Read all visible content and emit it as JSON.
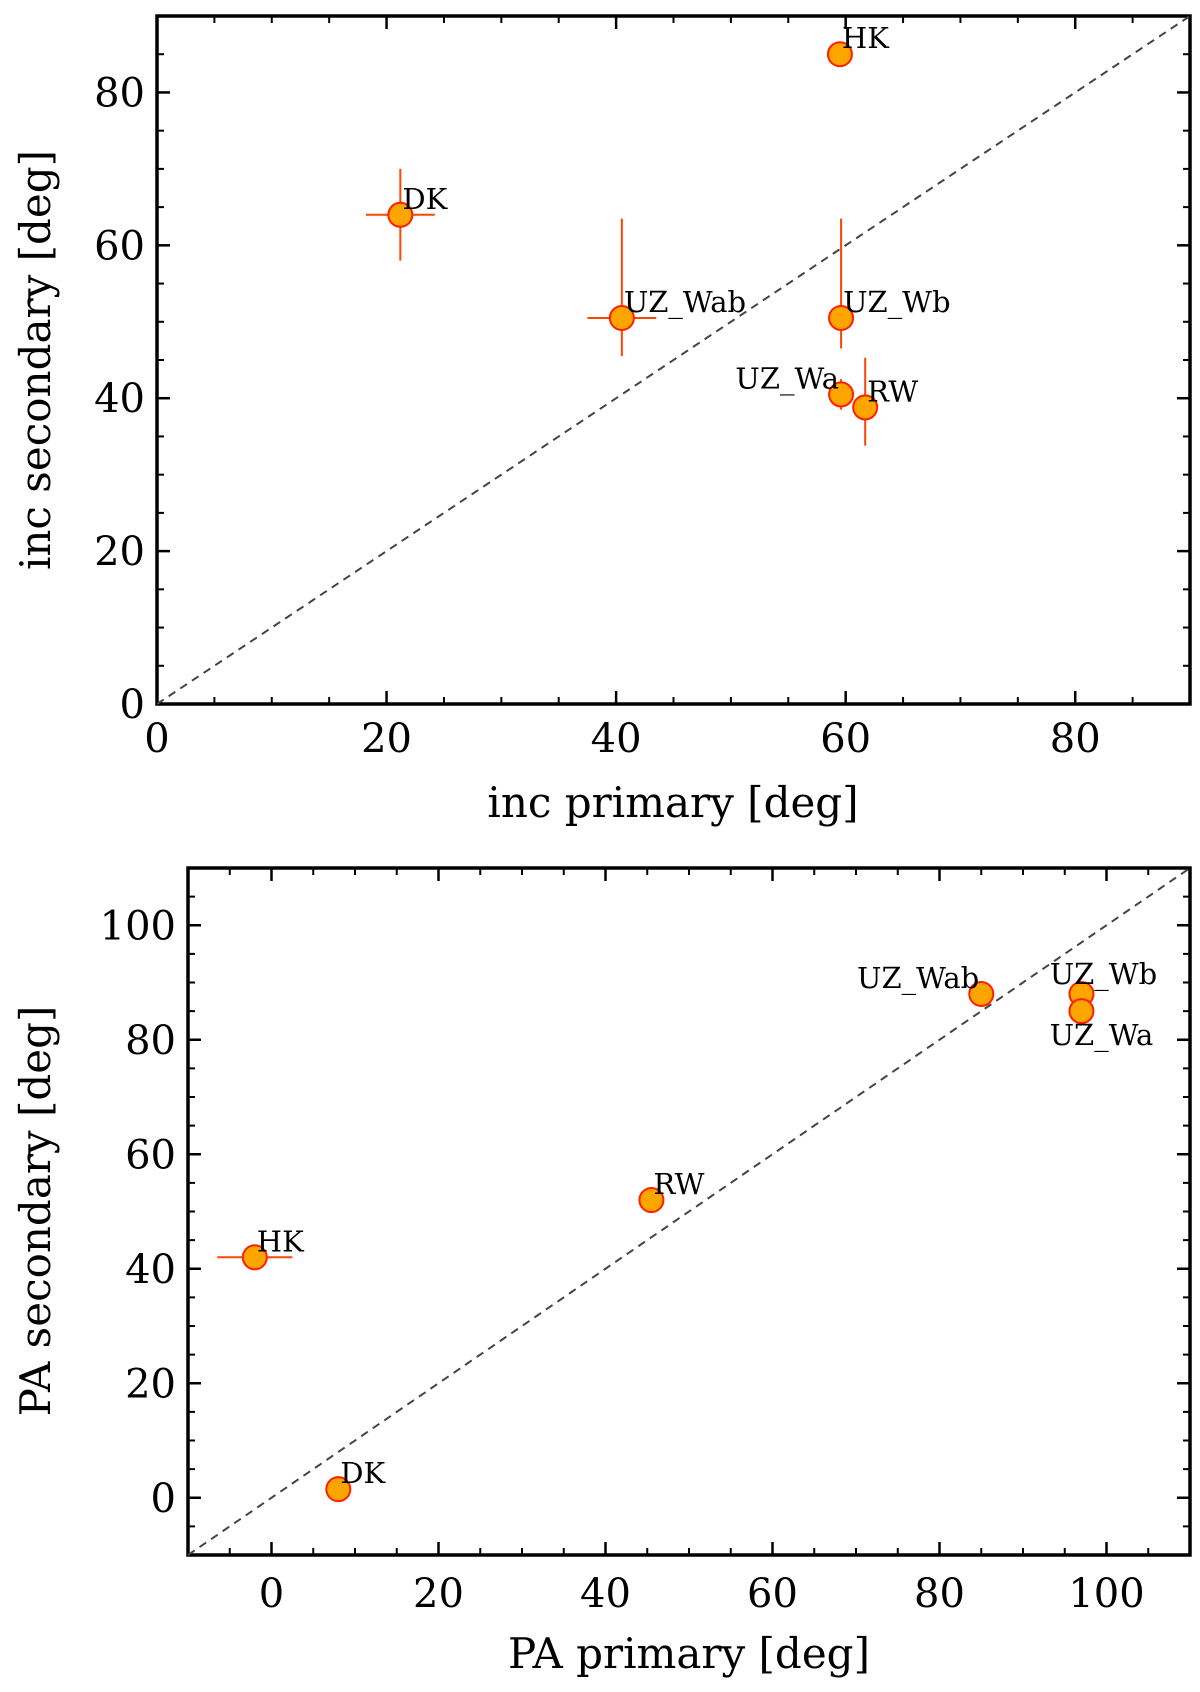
{
  "chart_data": [
    {
      "type": "scatter",
      "xlabel": "inc primary [deg]",
      "ylabel": "inc secondary [deg]",
      "xlim": [
        0,
        90
      ],
      "ylim": [
        0,
        90
      ],
      "xticks": [
        0,
        20,
        40,
        60,
        80
      ],
      "yticks": [
        0,
        20,
        40,
        60,
        80
      ],
      "xticks_minor_step": 5,
      "yticks_minor_step": 5,
      "diagonal": true,
      "grid": false,
      "colors": {
        "marker_fill": "#FFA500",
        "marker_edge": "#FF2000",
        "errorbar": "#FF4500",
        "diagonal": "#444444"
      },
      "points": [
        {
          "label": "HK",
          "x": 59.5,
          "y": 85.0,
          "xerr": 0,
          "yerr": 0,
          "label_pos": "upper-right"
        },
        {
          "label": "DK",
          "x": 21.2,
          "y": 64.0,
          "xerr": 3.0,
          "yerr": 6.0,
          "label_pos": "upper-right"
        },
        {
          "label": "UZ_Wab",
          "x": 40.5,
          "y": 50.5,
          "xerr": 3.0,
          "yerr": 13.0,
          "yerr_low": 5.0,
          "label_pos": "upper-right"
        },
        {
          "label": "UZ_Wb",
          "x": 59.6,
          "y": 50.5,
          "xerr": 0,
          "yerr": 13.0,
          "yerr_low": 4.0,
          "label_pos": "upper-right"
        },
        {
          "label": "UZ_Wa",
          "x": 59.6,
          "y": 40.5,
          "xerr": 0,
          "yerr": 2.0,
          "label_pos": "upper-left"
        },
        {
          "label": "RW",
          "x": 61.7,
          "y": 38.8,
          "xerr": 0,
          "yerr": 6.5,
          "yerr_low": 5.0,
          "label_pos": "upper-right"
        }
      ]
    },
    {
      "type": "scatter",
      "xlabel": "PA primary [deg]",
      "ylabel": "PA secondary [deg]",
      "xlim": [
        -10,
        110
      ],
      "ylim": [
        -10,
        110
      ],
      "xticks": [
        0,
        20,
        40,
        60,
        80,
        100
      ],
      "yticks": [
        0,
        20,
        40,
        60,
        80,
        100
      ],
      "xticks_minor_step": 5,
      "yticks_minor_step": 5,
      "diagonal": true,
      "grid": false,
      "colors": {
        "marker_fill": "#FFA500",
        "marker_edge": "#FF2000",
        "errorbar": "#FF4500",
        "diagonal": "#444444"
      },
      "points": [
        {
          "label": "HK",
          "x": -2.0,
          "y": 42.0,
          "xerr": 4.5,
          "yerr": 0,
          "label_pos": "upper-right"
        },
        {
          "label": "DK",
          "x": 8.0,
          "y": 1.5,
          "xerr": 0,
          "yerr": 0,
          "label_pos": "upper-right"
        },
        {
          "label": "RW",
          "x": 45.5,
          "y": 52.0,
          "xerr": 0,
          "yerr": 0,
          "label_pos": "upper-right"
        },
        {
          "label": "UZ_Wab",
          "x": 85.0,
          "y": 88.0,
          "xerr": 0,
          "yerr": 0,
          "label_pos": "upper-left"
        },
        {
          "label": "UZ_Wb",
          "x": 97.0,
          "y": 88.0,
          "xerr": 0,
          "yerr": 0,
          "label_pos": "top"
        },
        {
          "label": "UZ_Wa",
          "x": 97.0,
          "y": 85.0,
          "xerr": 0,
          "yerr": 0,
          "label_pos": "bottom"
        }
      ]
    }
  ]
}
